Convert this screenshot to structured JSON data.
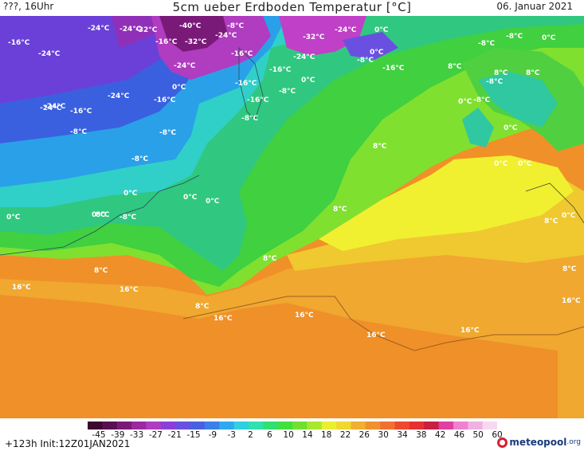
{
  "header": {
    "left": "???, 16Uhr",
    "title": "5cm ueber Erdboden Temperatur [°C]",
    "date": "06. Januar 2021"
  },
  "footer": {
    "init": "+123h  Init:12Z01JAN2021",
    "logo_name": "meteopool",
    "logo_tld": ".org"
  },
  "colorbar": {
    "ticks": [
      "-45",
      "-39",
      "-33",
      "-27",
      "-21",
      "-15",
      "-9",
      "-3",
      "2",
      "6",
      "10",
      "14",
      "18",
      "22",
      "26",
      "30",
      "34",
      "38",
      "42",
      "46",
      "50",
      "60"
    ],
    "colors": [
      "#3b0a2e",
      "#5a0f4f",
      "#7a1a78",
      "#9b2aa0",
      "#b03cc0",
      "#8a40d8",
      "#6a50e0",
      "#4a60e0",
      "#3a80e8",
      "#30a8f0",
      "#30d0e0",
      "#30e0b0",
      "#30e070",
      "#40e040",
      "#70e030",
      "#a8e830",
      "#e8f030",
      "#f0d830",
      "#f0b030",
      "#f09030",
      "#f07030",
      "#f04830",
      "#e83030",
      "#c82040",
      "#e040a0",
      "#f080d0",
      "#f0b0e0",
      "#f8d8f0"
    ]
  },
  "temperature_labels": [
    {
      "t": "-24°C"
    },
    {
      "t": "-32°C"
    },
    {
      "t": "-40°C"
    },
    {
      "t": "-8°C"
    },
    {
      "t": "-32°C"
    },
    {
      "t": "-24°C"
    },
    {
      "t": "-24°C"
    },
    {
      "t": "0°C"
    },
    {
      "t": "-16°C"
    },
    {
      "t": "-16°C"
    },
    {
      "t": "-24°C"
    },
    {
      "t": "-16°C"
    },
    {
      "t": "-16°C"
    },
    {
      "t": "-32°C"
    },
    {
      "t": "-24°C"
    },
    {
      "t": "-8°C"
    },
    {
      "t": "0°C"
    },
    {
      "t": "-16°C"
    },
    {
      "t": "-24°C"
    },
    {
      "t": "-24°C"
    },
    {
      "t": "0°C"
    },
    {
      "t": "-16°C"
    },
    {
      "t": "-24°C"
    },
    {
      "t": "-16°C"
    },
    {
      "t": "0°C"
    },
    {
      "t": "-16°C"
    },
    {
      "t": "-8°C"
    },
    {
      "t": "-8°C"
    },
    {
      "t": "-8°C"
    },
    {
      "t": "8°C"
    },
    {
      "t": "-24°C"
    },
    {
      "t": "-24°C"
    },
    {
      "t": "-16°C"
    },
    {
      "t": "-8°C"
    },
    {
      "t": "-8°C"
    },
    {
      "t": "-8°C"
    },
    {
      "t": "0°C"
    },
    {
      "t": "0°C"
    },
    {
      "t": "0°C"
    },
    {
      "t": "0°C"
    },
    {
      "t": "8°C"
    },
    {
      "t": "8°C"
    },
    {
      "t": "-8°C"
    },
    {
      "t": "0°C"
    },
    {
      "t": "-8°C"
    },
    {
      "t": "-8°C"
    },
    {
      "t": "0°C"
    },
    {
      "t": "0°C"
    },
    {
      "t": "8°C"
    },
    {
      "t": "8°C"
    },
    {
      "t": "16°C"
    },
    {
      "t": "16°C"
    },
    {
      "t": "8°C"
    },
    {
      "t": "16°C"
    },
    {
      "t": "16°C"
    },
    {
      "t": "16°C"
    },
    {
      "t": "16°C"
    },
    {
      "t": "16°C"
    },
    {
      "t": "0°C"
    },
    {
      "t": "0°C"
    },
    {
      "t": "8°C"
    },
    {
      "t": "8°C"
    },
    {
      "t": "8°C"
    },
    {
      "t": "-8°C"
    },
    {
      "t": "8°C"
    },
    {
      "t": "8°C"
    },
    {
      "t": "0°C"
    },
    {
      "t": "0°C"
    }
  ]
}
